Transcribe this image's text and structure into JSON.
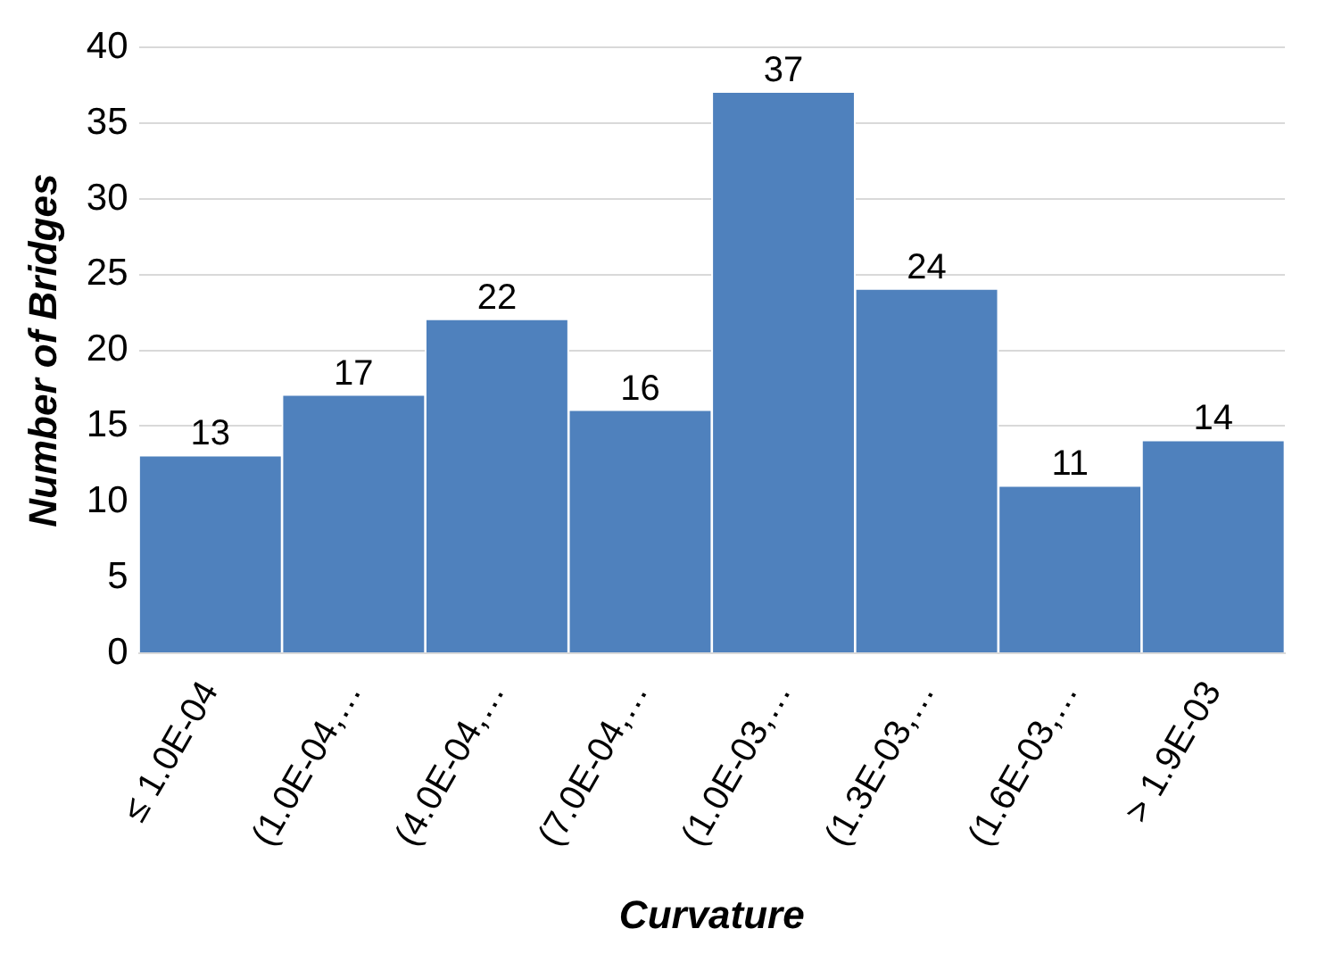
{
  "chart_data": {
    "type": "bar",
    "xlabel": "Curvature",
    "ylabel": "Number of Bridges",
    "categories": [
      "≤ 1.0E-04",
      "(1.0E-04,…",
      "(4.0E-04,…",
      "(7.0E-04,…",
      "(1.0E-03,…",
      "(1.3E-03,…",
      "(1.6E-03,…",
      "> 1.9E-03"
    ],
    "values": [
      13,
      17,
      22,
      16,
      37,
      24,
      11,
      14
    ],
    "color": "#4f81bd",
    "ylim": [
      0,
      40
    ],
    "yticks": [
      0,
      5,
      10,
      15,
      20,
      25,
      30,
      35,
      40
    ],
    "grid": "y",
    "data_labels": true,
    "legend": false
  }
}
